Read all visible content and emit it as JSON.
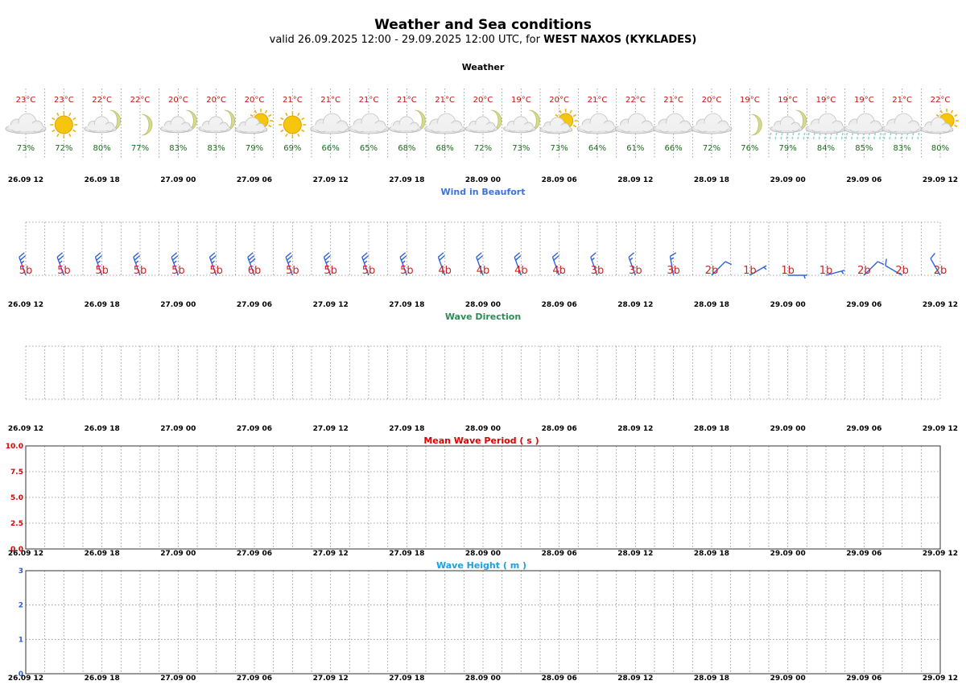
{
  "header": {
    "title": "Weather and Sea conditions",
    "subtitle_prefix": "valid 26.09.2025 12:00 - 29.09.2025 12:00 UTC, for ",
    "location": "WEST NAXOS (KYKLADES)"
  },
  "time_ticks": [
    "26.09 12",
    "26.09 18",
    "27.09 00",
    "27.09 06",
    "27.09 12",
    "27.09 18",
    "28.09 00",
    "28.09 06",
    "28.09 12",
    "28.09 18",
    "29.09 00",
    "29.09 06",
    "29.09 12"
  ],
  "colors": {
    "temperature": "#b8170d",
    "humidity": "#1a6b1a",
    "beaufort": "#d42020",
    "wind_barb": "#2f63d8",
    "wind_title": "#3d72d8",
    "wave_dir_title": "#2e8b57",
    "period_title": "#e00000",
    "height_title": "#1e9fe0",
    "height_axis": "#2b5cd8",
    "rain": "#86d8d0"
  },
  "chart_data": [
    {
      "type": "table",
      "title": "Weather",
      "temperature_c": [
        23,
        23,
        22,
        22,
        20,
        20,
        20,
        21,
        21,
        21,
        21,
        21,
        20,
        19,
        20,
        21,
        22,
        21,
        20,
        19,
        19,
        19,
        19,
        21,
        22
      ],
      "temperature_labels": [
        "23°C",
        "23°C",
        "22°C",
        "22°C",
        "20°C",
        "20°C",
        "20°C",
        "21°C",
        "21°C",
        "21°C",
        "21°C",
        "21°C",
        "20°C",
        "19°C",
        "20°C",
        "21°C",
        "22°C",
        "21°C",
        "20°C",
        "19°C",
        "19°C",
        "19°C",
        "19°C",
        "21°C",
        "22°C"
      ],
      "humidity_pct": [
        73,
        72,
        80,
        77,
        83,
        83,
        79,
        69,
        66,
        65,
        68,
        68,
        72,
        73,
        73,
        64,
        61,
        66,
        72,
        76,
        79,
        84,
        85,
        83,
        80
      ],
      "humidity_labels": [
        "73%",
        "72%",
        "80%",
        "77%",
        "83%",
        "83%",
        "79%",
        "69%",
        "66%",
        "65%",
        "68%",
        "68%",
        "72%",
        "73%",
        "73%",
        "64%",
        "61%",
        "66%",
        "72%",
        "76%",
        "79%",
        "84%",
        "85%",
        "83%",
        "80%"
      ],
      "icons": [
        "cloud-icon",
        "sun-icon",
        "moon-cloud-icon",
        "moon-icon",
        "moon-cloud-icon",
        "moon-cloud-icon",
        "sun-cloud-icon",
        "sun-icon",
        "cloud-icon",
        "cloud-icon",
        "moon-cloud-icon",
        "cloud-icon",
        "moon-cloud-icon",
        "moon-cloud-icon",
        "sun-cloud-icon",
        "cloud-icon",
        "cloud-icon",
        "cloud-icon",
        "cloud-icon",
        "moon-icon",
        "moon-cloud-rain-icon",
        "cloud-rain-icon",
        "cloud-rain-icon",
        "cloud-rain-icon",
        "sun-cloud-icon"
      ]
    },
    {
      "type": "scatter",
      "title": "Wind in Beaufort",
      "beaufort": [
        5,
        5,
        5,
        5,
        5,
        5,
        6,
        5,
        5,
        5,
        5,
        4,
        4,
        4,
        4,
        3,
        3,
        3,
        2,
        1,
        1,
        1,
        2,
        2,
        2
      ],
      "beaufort_labels": [
        "5b",
        "5b",
        "5b",
        "5b",
        "5b",
        "5b",
        "6b",
        "5b",
        "5b",
        "5b",
        "5b",
        "4b",
        "4b",
        "4b",
        "4b",
        "3b",
        "3b",
        "3b",
        "2b",
        "1b",
        "1b",
        "1b",
        "2b",
        "2b",
        "2b"
      ],
      "direction_from_deg": [
        340,
        340,
        340,
        340,
        340,
        340,
        340,
        340,
        340,
        340,
        340,
        340,
        340,
        340,
        340,
        340,
        340,
        350,
        45,
        60,
        90,
        75,
        45,
        300,
        330
      ]
    },
    {
      "type": "scatter",
      "title": "Wave Direction",
      "values": []
    },
    {
      "type": "line",
      "title": "Mean Wave Period ( s )",
      "ylim": [
        0,
        10
      ],
      "yticks": [
        "0.0",
        "2.5",
        "5.0",
        "7.5",
        "10.0"
      ],
      "values": []
    },
    {
      "type": "line",
      "title": "Wave Height ( m )",
      "ylim": [
        0,
        3
      ],
      "yticks": [
        "0",
        "1",
        "2",
        "3"
      ],
      "values": []
    }
  ]
}
